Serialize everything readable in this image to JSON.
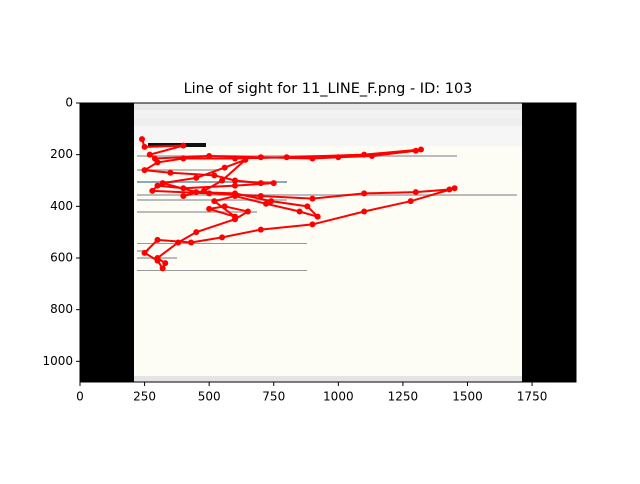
{
  "chart_data": {
    "type": "line",
    "title": "Line of sight for 11_LINE_F.png - ID: 103",
    "x": [
      240,
      250,
      400,
      270,
      290,
      500,
      700,
      900,
      1000,
      1130,
      1300,
      1320,
      1100,
      800,
      600,
      400,
      300,
      250,
      350,
      520,
      600,
      700,
      750,
      600,
      400,
      300,
      280,
      500,
      700,
      900,
      1100,
      1300,
      1430,
      1450,
      1280,
      1100,
      900,
      700,
      550,
      430,
      300,
      250,
      300,
      320,
      330,
      300,
      380,
      450,
      600,
      650,
      560,
      500,
      600,
      520,
      600,
      720,
      850,
      920,
      880,
      740,
      600,
      450,
      320,
      450,
      560,
      640,
      550,
      480,
      400
    ],
    "y": [
      140,
      170,
      165,
      200,
      215,
      205,
      210,
      215,
      210,
      205,
      185,
      180,
      200,
      210,
      215,
      215,
      230,
      260,
      270,
      280,
      300,
      310,
      310,
      320,
      330,
      320,
      340,
      350,
      360,
      370,
      350,
      345,
      335,
      330,
      380,
      420,
      470,
      490,
      520,
      540,
      530,
      580,
      610,
      640,
      620,
      600,
      540,
      500,
      450,
      420,
      400,
      410,
      440,
      380,
      360,
      390,
      420,
      440,
      400,
      380,
      350,
      345,
      310,
      290,
      250,
      220,
      300,
      340,
      360
    ],
    "color": "#ff0000",
    "xlim": [
      0,
      1920
    ],
    "ylim": [
      1080,
      0
    ],
    "xticks": [
      0,
      250,
      500,
      750,
      1000,
      1250,
      1500,
      1750
    ],
    "yticks": [
      0,
      200,
      400,
      600,
      800,
      1000
    ]
  }
}
